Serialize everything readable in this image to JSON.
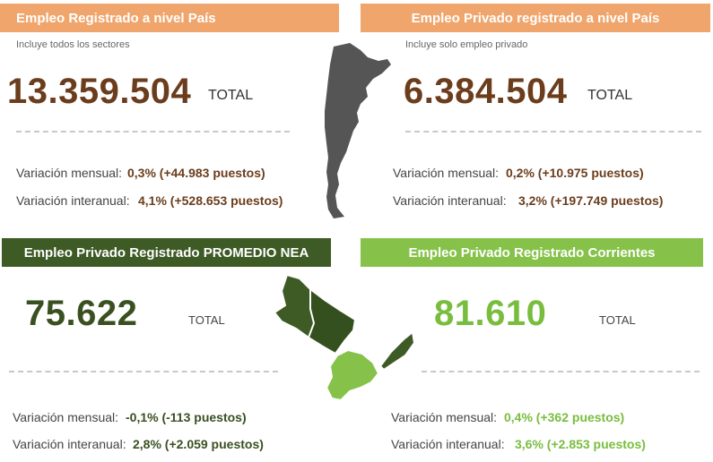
{
  "panels": {
    "top_left": {
      "header": "Empleo Registrado a nivel País",
      "subtitle": "Incluye todos los sectores",
      "value": "13.359.504",
      "total_label": "TOTAL",
      "monthly_label": "Variación mensual:",
      "monthly_value": "0,3%  (+44.983 puestos)",
      "annual_label": "Variación interanual:",
      "annual_value": "4,1% (+528.653 puestos)"
    },
    "top_right": {
      "header": "Empleo Privado registrado a nivel País",
      "subtitle": "Incluye solo empleo privado",
      "value": "6.384.504",
      "total_label": "TOTAL",
      "monthly_label": "Variación mensual:",
      "monthly_value": "0,2%  (+10.975 puestos)",
      "annual_label": "Variación interanual:",
      "annual_value": "3,2% (+197.749 puestos)"
    },
    "bottom_left": {
      "header": "Empleo Privado Registrado PROMEDIO NEA",
      "value": "75.622",
      "total_label": "TOTAL",
      "monthly_label": "Variación mensual:",
      "monthly_value": "-0,1% (-113 puestos)",
      "annual_label": "Variación interanual:",
      "annual_value": "2,8% (+2.059 puestos)"
    },
    "bottom_right": {
      "header": "Empleo Privado Registrado Corrientes",
      "value": "81.610",
      "total_label": "TOTAL",
      "monthly_label": "Variación mensual:",
      "monthly_value": "0,4% (+362 puestos)",
      "annual_label": "Variación interanual:",
      "annual_value": "3,6% (+2.853 puestos)"
    }
  },
  "colors": {
    "orange": "#f0a56c",
    "brown": "#6b3d1c",
    "dark_green": "#3e5a25",
    "light_green": "#86c24a",
    "map_gray": "#555555"
  },
  "icons": [
    "argentina-map-icon",
    "nea-region-map-icon"
  ]
}
